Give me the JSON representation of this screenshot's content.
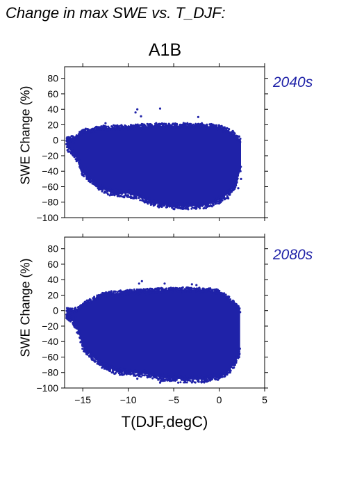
{
  "figure_title": "Change in max SWE vs. T_DJF:",
  "scenario": "A1B",
  "colors": {
    "points": "#1f22a8",
    "period_text": "#1f22a8"
  },
  "chart_data": [
    {
      "type": "scatter",
      "period": "2040s",
      "xlabel": "T(DJF,degC)",
      "ylabel": "SWE Change (%)",
      "xlim": [
        -17,
        5
      ],
      "ylim": [
        -100,
        95
      ],
      "xticks": [
        -15,
        -10,
        -5,
        0,
        5
      ],
      "yticks": [
        -100,
        -80,
        -60,
        -40,
        -20,
        0,
        20,
        40,
        60,
        80
      ],
      "show_x_tick_labels": false,
      "grid": false,
      "cloud_envelope": {
        "x": [
          -16.8,
          -16.0,
          -15.5,
          -15.0,
          -14.0,
          -13.0,
          -12.0,
          -11.0,
          -10.0,
          -9.0,
          -8.0,
          -7.0,
          -6.0,
          -5.0,
          -4.0,
          -3.0,
          -2.0,
          -1.0,
          0.0,
          1.0,
          1.8,
          2.4
        ],
        "upper": [
          3,
          5,
          8,
          14,
          15,
          18,
          18,
          19,
          19,
          20,
          20,
          21,
          21,
          21,
          21,
          21,
          21,
          20,
          19,
          14,
          8,
          2
        ],
        "lower": [
          -12,
          -20,
          -30,
          -45,
          -55,
          -65,
          -70,
          -72,
          -72,
          -75,
          -80,
          -85,
          -85,
          -88,
          -88,
          -88,
          -88,
          -85,
          -80,
          -72,
          -60,
          -40
        ]
      },
      "outliers": [
        [
          -9.0,
          40
        ],
        [
          -9.2,
          36
        ],
        [
          -8.6,
          31
        ],
        [
          -6.5,
          41
        ],
        [
          -2.3,
          30
        ],
        [
          -12.5,
          22
        ],
        [
          1.5,
          12
        ],
        [
          2.2,
          5
        ],
        [
          -16.5,
          3
        ],
        [
          -16.8,
          -5
        ],
        [
          -16.2,
          -10
        ],
        [
          2.4,
          -50
        ],
        [
          2.1,
          -62
        ],
        [
          1.0,
          -75
        ],
        [
          -1.8,
          -84
        ],
        [
          -2.5,
          -88
        ],
        [
          -6.0,
          -84
        ],
        [
          -7.5,
          -80
        ],
        [
          -12.8,
          -58
        ],
        [
          -14.5,
          -35
        ],
        [
          -16.0,
          -3
        ]
      ]
    },
    {
      "type": "scatter",
      "period": "2080s",
      "xlabel": "T(DJF,degC)",
      "ylabel": "SWE Change (%)",
      "xlim": [
        -17,
        5
      ],
      "ylim": [
        -100,
        95
      ],
      "xticks": [
        -15,
        -10,
        -5,
        0,
        5
      ],
      "yticks": [
        -100,
        -80,
        -60,
        -40,
        -20,
        0,
        20,
        40,
        60,
        80
      ],
      "show_x_tick_labels": true,
      "grid": false,
      "cloud_envelope": {
        "x": [
          -16.8,
          -16.0,
          -15.5,
          -15.0,
          -14.0,
          -13.0,
          -12.0,
          -11.0,
          -10.0,
          -9.0,
          -8.0,
          -7.0,
          -6.0,
          -5.0,
          -4.0,
          -3.0,
          -2.0,
          -1.0,
          0.0,
          1.0,
          1.8,
          2.3
        ],
        "upper": [
          2,
          3,
          5,
          10,
          15,
          22,
          24,
          25,
          26,
          27,
          27,
          28,
          28,
          29,
          29,
          29,
          29,
          28,
          26,
          18,
          10,
          3
        ],
        "lower": [
          -10,
          -18,
          -30,
          -50,
          -62,
          -72,
          -78,
          -82,
          -82,
          -84,
          -85,
          -88,
          -90,
          -90,
          -92,
          -92,
          -92,
          -90,
          -88,
          -82,
          -70,
          -55
        ]
      },
      "outliers": [
        [
          -8.5,
          38
        ],
        [
          -8.8,
          35
        ],
        [
          -6.0,
          35
        ],
        [
          -3.0,
          34
        ],
        [
          -2.5,
          33
        ],
        [
          -16.5,
          0
        ],
        [
          -16.8,
          -5
        ],
        [
          -15.8,
          -8
        ],
        [
          2.3,
          -2
        ],
        [
          1.8,
          5
        ],
        [
          2.2,
          -60
        ],
        [
          1.2,
          -80
        ],
        [
          -1.5,
          -90
        ],
        [
          -4.5,
          -93
        ],
        [
          -6.5,
          -93
        ],
        [
          -9.0,
          -88
        ]
      ]
    }
  ]
}
